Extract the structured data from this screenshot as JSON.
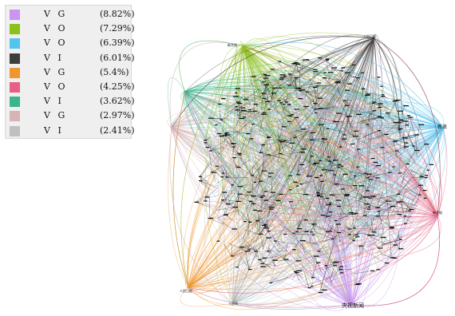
{
  "chart_data": {
    "type": "network",
    "legend": [
      {
        "label": "V G",
        "percent": "(8.82%)",
        "color": "#c896f0"
      },
      {
        "label": "V O",
        "percent": "(7.29%)",
        "color": "#8cc01c"
      },
      {
        "label": "V O",
        "percent": "(6.39%)",
        "color": "#55c3ef"
      },
      {
        "label": "V I",
        "percent": "(6.01%)",
        "color": "#3d3d3d"
      },
      {
        "label": "V G",
        "percent": "(5.4%)",
        "color": "#f0962e"
      },
      {
        "label": "V O",
        "percent": "(4.25%)",
        "color": "#e85f85"
      },
      {
        "label": "V I",
        "percent": "(3.62%)",
        "color": "#3cb58a"
      },
      {
        "label": "V G",
        "percent": "(2.97%)",
        "color": "#d4b4b4"
      },
      {
        "label": "V I",
        "percent": "(2.41%)",
        "color": "#c0c0c0"
      }
    ],
    "hub_labels": [
      {
        "text": "央视新闻",
        "color": "#c896f0"
      },
      {
        "text": "新华网",
        "color": "#8cc01c"
      },
      {
        "text": "人民日报",
        "color": "#3d3d3d"
      },
      {
        "text": "人民日报",
        "color": "#f0962e"
      },
      {
        "text": "人民网",
        "color": "#c0c0c0"
      },
      {
        "text": "新浪",
        "color": "#55c3ef"
      },
      {
        "text": "新京报",
        "color": "#e85f85"
      }
    ],
    "colors": {
      "edge_dense": "#111111",
      "edge_light": "#8f8f8f"
    }
  }
}
